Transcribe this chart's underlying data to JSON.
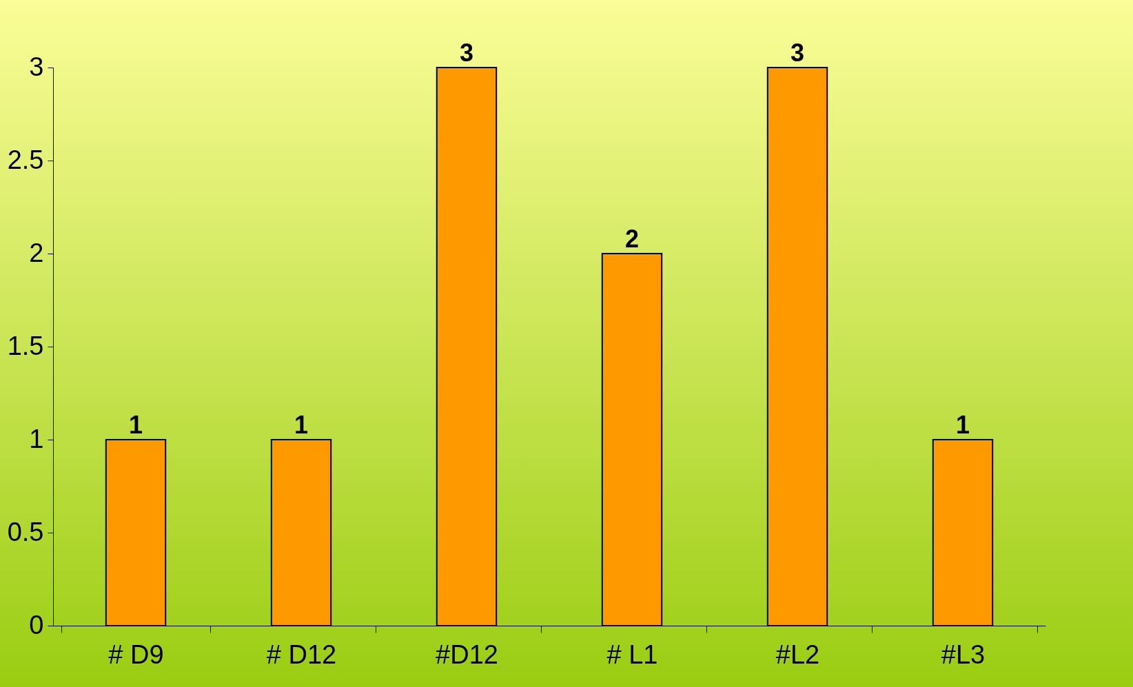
{
  "chart_data": {
    "type": "bar",
    "categories": [
      "# D9",
      "#  D12",
      "#D12",
      "# L1",
      "#L2",
      "#L3"
    ],
    "values": [
      1,
      1,
      3,
      2,
      3,
      1
    ],
    "color": "#ff9900",
    "ylim": [
      0,
      3
    ],
    "yticks": [
      0,
      0.5,
      1,
      1.5,
      2,
      2.5,
      3
    ],
    "data_labels": true,
    "grid": false
  }
}
